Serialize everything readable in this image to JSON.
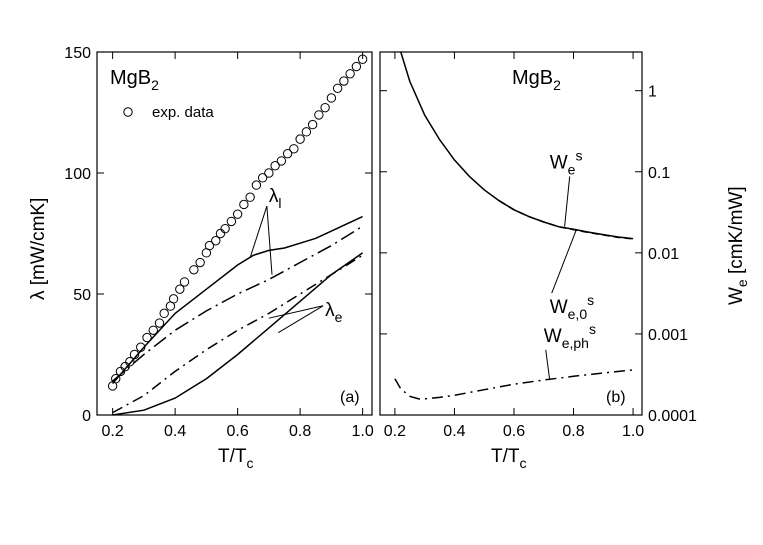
{
  "chart_data": [
    {
      "type": "line",
      "panel_letter": "(a)",
      "title": "MgB2",
      "title_main": "MgB",
      "title_sub": "2",
      "xlabel": "T/Tc",
      "xlabel_main": "T/T",
      "xlabel_sub": "c",
      "ylabel": "λ [mW/cmK]",
      "xlim": [
        0.15,
        1.03
      ],
      "ylim": [
        0,
        150
      ],
      "xticks": [
        0.2,
        0.4,
        0.6,
        0.8,
        1.0
      ],
      "xtick_labels": [
        "0.2",
        "0.4",
        "0.6",
        "0.8",
        "1.0"
      ],
      "yticks": [
        0,
        50,
        100,
        150
      ],
      "ytick_labels": [
        "0",
        "50",
        "100",
        "150"
      ],
      "legend": {
        "label": "exp. data",
        "marker": "open-circle",
        "position": "top-left"
      },
      "scatter": {
        "name": "exp. data",
        "x": [
          0.2,
          0.21,
          0.225,
          0.24,
          0.255,
          0.27,
          0.29,
          0.31,
          0.33,
          0.35,
          0.365,
          0.385,
          0.395,
          0.415,
          0.43,
          0.46,
          0.48,
          0.5,
          0.51,
          0.53,
          0.545,
          0.56,
          0.58,
          0.6,
          0.62,
          0.64,
          0.66,
          0.68,
          0.7,
          0.72,
          0.74,
          0.76,
          0.78,
          0.8,
          0.82,
          0.84,
          0.86,
          0.88,
          0.9,
          0.92,
          0.94,
          0.96,
          0.98,
          1.0
        ],
        "y": [
          12,
          15,
          18,
          20,
          22,
          25,
          28,
          32,
          35,
          38,
          42,
          45,
          48,
          52,
          55,
          60,
          63,
          67,
          70,
          72,
          75,
          77,
          80,
          83,
          87,
          90,
          95,
          98,
          100,
          103,
          105,
          108,
          110,
          114,
          117,
          120,
          124,
          127,
          131,
          135,
          138,
          141,
          144,
          147
        ]
      },
      "series": [
        {
          "name": "λl",
          "style": "solid",
          "x": [
            0.2,
            0.3,
            0.4,
            0.5,
            0.6,
            0.65,
            0.7,
            0.75,
            0.8,
            0.85,
            0.9,
            0.95,
            1.0
          ],
          "y": [
            13,
            28,
            42,
            52,
            62,
            66,
            68,
            69,
            71,
            73,
            76,
            79,
            82
          ]
        },
        {
          "name": "λl (dash-dot)",
          "style": "dashdot-long",
          "x": [
            0.2,
            0.3,
            0.4,
            0.5,
            0.6,
            0.7,
            0.8,
            0.9,
            1.0
          ],
          "y": [
            14,
            25,
            35,
            43,
            50,
            56,
            63,
            70,
            78
          ]
        },
        {
          "name": "λe (dash-dot)",
          "style": "dashdot",
          "x": [
            0.2,
            0.3,
            0.4,
            0.5,
            0.6,
            0.7,
            0.8,
            0.9,
            1.0
          ],
          "y": [
            1,
            8,
            18,
            27,
            35,
            42,
            50,
            58,
            66
          ]
        },
        {
          "name": "λe",
          "style": "solid",
          "x": [
            0.2,
            0.3,
            0.4,
            0.5,
            0.6,
            0.7,
            0.8,
            0.9,
            1.0
          ],
          "y": [
            0,
            2,
            7,
            15,
            25,
            36,
            47,
            58,
            67
          ]
        }
      ],
      "annotations": [
        {
          "label": "λl",
          "label_main": "λ",
          "label_sub": "l",
          "text_xy": [
            0.7,
            88
          ],
          "arrows_to": [
            [
              0.64,
              65
            ],
            [
              0.71,
              58
            ]
          ]
        },
        {
          "label": "λe",
          "label_main": "λ",
          "label_sub": "e",
          "text_xy": [
            0.88,
            41
          ],
          "arrows_to": [
            [
              0.7,
              40
            ],
            [
              0.73,
              34
            ]
          ]
        }
      ]
    },
    {
      "type": "line",
      "panel_letter": "(b)",
      "title": "MgB2",
      "title_main": "MgB",
      "title_sub": "2",
      "xlabel": "T/Tc",
      "xlabel_main": "T/T",
      "xlabel_sub": "c",
      "ylabel": "We [cmK/mW]",
      "ylabel_main": "W",
      "ylabel_sub": "e",
      "ylabel_rest": " [cmK/mW]",
      "yscale": "log",
      "xlim": [
        0.15,
        1.03
      ],
      "ylim": [
        0.0001,
        3
      ],
      "xticks": [
        0.2,
        0.4,
        0.6,
        0.8,
        1.0
      ],
      "xtick_labels": [
        "0.2",
        "0.4",
        "0.6",
        "0.8",
        "1.0"
      ],
      "yticks": [
        0.0001,
        0.001,
        0.01,
        0.1,
        1
      ],
      "ytick_labels": [
        "0.0001",
        "0.001",
        "0.01",
        "0.1",
        "1"
      ],
      "series": [
        {
          "name": "We^s",
          "style": "solid",
          "x": [
            0.22,
            0.25,
            0.3,
            0.35,
            0.4,
            0.45,
            0.5,
            0.55,
            0.6,
            0.65,
            0.7,
            0.75,
            0.8,
            0.85,
            0.9,
            0.95,
            1.0
          ],
          "y": [
            3.0,
            1.3,
            0.5,
            0.25,
            0.14,
            0.088,
            0.06,
            0.044,
            0.034,
            0.028,
            0.024,
            0.021,
            0.0195,
            0.018,
            0.0168,
            0.0157,
            0.015
          ]
        },
        {
          "name": "We,0^s",
          "style": "dashed",
          "x": [
            0.55,
            0.6,
            0.65,
            0.7,
            0.75,
            0.8,
            0.85,
            0.9,
            0.95,
            1.0
          ],
          "y": [
            0.044,
            0.034,
            0.028,
            0.024,
            0.021,
            0.0193,
            0.0178,
            0.0166,
            0.0155,
            0.0148
          ]
        },
        {
          "name": "We,ph^s",
          "style": "dashdot",
          "x": [
            0.2,
            0.22,
            0.25,
            0.28,
            0.3,
            0.35,
            0.4,
            0.5,
            0.6,
            0.7,
            0.8,
            0.9,
            1.0
          ],
          "y": [
            0.00028,
            0.00021,
            0.00017,
            0.000158,
            0.000158,
            0.000165,
            0.000175,
            0.000205,
            0.00024,
            0.00027,
            0.0003,
            0.00033,
            0.00036
          ]
        }
      ],
      "annotations": [
        {
          "label": "We^s",
          "label_main": "W",
          "label_sub": "e",
          "label_sup": "s",
          "text_xy": [
            0.72,
            0.11
          ],
          "arrow_to": [
            0.77,
            0.021
          ]
        },
        {
          "label": "We,0^s",
          "label_main": "W",
          "label_sub": "e,0",
          "label_sup": "s",
          "text_xy": [
            0.72,
            0.0018
          ],
          "arrow_to": [
            0.81,
            0.0195
          ]
        },
        {
          "label": "We,ph^s",
          "label_main": "W",
          "label_sub": "e,ph",
          "label_sup": "s",
          "text_xy": [
            0.7,
            0.0008
          ],
          "arrow_to": [
            0.72,
            0.00027
          ]
        }
      ]
    }
  ]
}
